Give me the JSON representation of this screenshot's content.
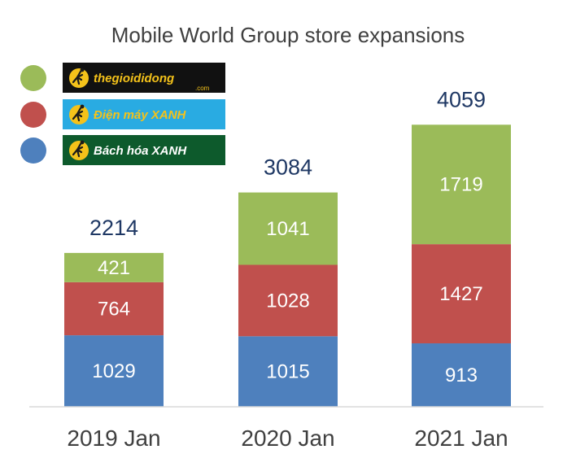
{
  "chart_data": {
    "type": "bar",
    "stacked": true,
    "title": "Mobile World Group store expansions",
    "categories": [
      "2019 Jan",
      "2020 Jan",
      "2021 Jan"
    ],
    "totals": [
      2214,
      3084,
      4059
    ],
    "series": [
      {
        "name": "Bách hóa XANH",
        "color": "#4e80bd",
        "values": [
          1029,
          1015,
          913
        ]
      },
      {
        "name": "Điện máy XANH",
        "color": "#c0504d",
        "values": [
          764,
          1028,
          1427
        ]
      },
      {
        "name": "thegioididong",
        "color": "#9bbb59",
        "values": [
          421,
          1041,
          1719
        ]
      }
    ],
    "ylim": [
      0,
      4800
    ],
    "grid": false,
    "legend_position": "top-left"
  },
  "legend": [
    {
      "text": "thegioididong",
      "sub": ".com",
      "dot_color": "#9bbb59",
      "bg": "#111111",
      "text_color": "#f4c21a",
      "icon": "running-man-icon"
    },
    {
      "text": "Điện máy XANH",
      "sub": "",
      "dot_color": "#c0504d",
      "bg": "#29abe2",
      "text_color": "#f4c21a",
      "icon": "running-man-icon"
    },
    {
      "text": "Bách hóa XANH",
      "sub": "",
      "dot_color": "#4e80bd",
      "bg": "#0d5a2c",
      "text_color": "#ffffff",
      "icon": "running-man-icon"
    }
  ]
}
